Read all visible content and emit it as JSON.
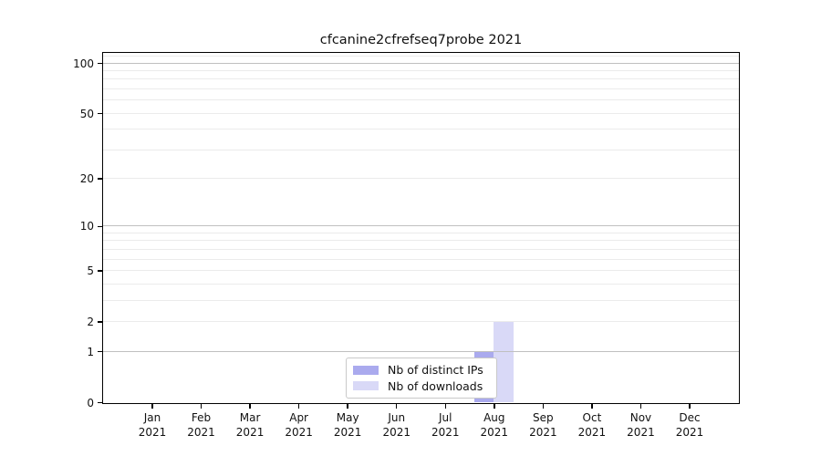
{
  "chart_data": {
    "type": "bar",
    "title": "cfcanine2cfrefseq7probe 2021",
    "categories": [
      "Jan",
      "Feb",
      "Mar",
      "Apr",
      "May",
      "Jun",
      "Jul",
      "Aug",
      "Sep",
      "Oct",
      "Nov",
      "Dec"
    ],
    "category_year": "2021",
    "series": [
      {
        "name": "Nb of distinct IPs",
        "color": "#aaaaee",
        "values": [
          0,
          0,
          0,
          0,
          0,
          0,
          0,
          1,
          0,
          0,
          0,
          0
        ]
      },
      {
        "name": "Nb of downloads",
        "color": "#d9d9f7",
        "values": [
          0,
          0,
          0,
          0,
          0,
          0,
          0,
          2,
          0,
          0,
          0,
          0
        ]
      }
    ],
    "y_scale": "log1p",
    "ylim": [
      0,
      115
    ],
    "y_ticks": [
      0,
      1,
      2,
      5,
      10,
      20,
      50,
      100
    ],
    "y_major_gridlines": [
      1,
      10,
      100
    ],
    "y_minor_gridlines": [
      2,
      3,
      4,
      5,
      6,
      7,
      8,
      9,
      20,
      30,
      40,
      50,
      60,
      70,
      80,
      90,
      110
    ],
    "grid": true,
    "legend_position": "inside-bottom-center"
  },
  "colors": {
    "background": "#ffffff",
    "axis": "#000000",
    "major_gridline": "#c0c0c0",
    "minor_gridline": "#ebebeb",
    "legend_border": "#c9c9c9",
    "text": "#111111"
  }
}
